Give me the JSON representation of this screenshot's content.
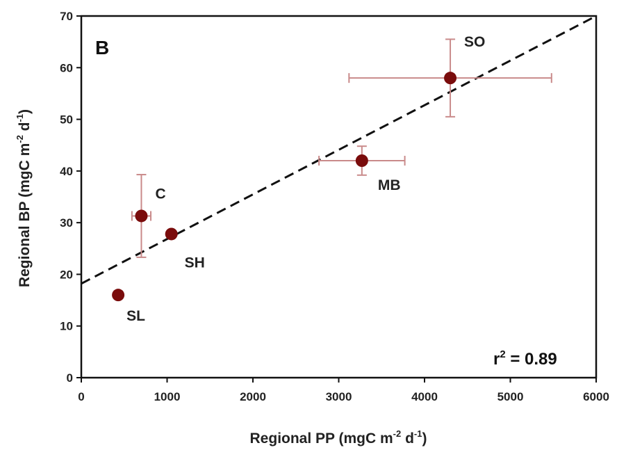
{
  "chart_data": {
    "type": "scatter",
    "panel_label": "B",
    "xlabel": {
      "prefix": "Regional PP (mgC m",
      "sup1": "-2",
      "mid": " d",
      "sup2": "-1",
      "suffix": ")"
    },
    "ylabel": {
      "prefix": "Regional BP (mgC m",
      "sup1": "-2",
      "mid": " d",
      "sup2": "-1",
      "suffix": ")"
    },
    "xlim": [
      0,
      6000
    ],
    "ylim": [
      0,
      70
    ],
    "xticks": [
      0,
      1000,
      2000,
      3000,
      4000,
      5000,
      6000
    ],
    "yticks": [
      0,
      10,
      20,
      30,
      40,
      50,
      60,
      70
    ],
    "grid": false,
    "point_color": "#7a0c0c",
    "errorbar_color": "#c98a8a",
    "fit_line_color": "#111111",
    "points": [
      {
        "label": "SL",
        "x": 430,
        "y": 16.0,
        "xerr": 0,
        "yerr": 0,
        "label_pos": "below-right"
      },
      {
        "label": "C",
        "x": 700,
        "y": 31.3,
        "xerr": 110,
        "yerr": 8.0,
        "label_pos": "above-right"
      },
      {
        "label": "SH",
        "x": 1050,
        "y": 27.8,
        "xerr": 0,
        "yerr": 0,
        "label_pos": "below-right"
      },
      {
        "label": "MB",
        "x": 3270,
        "y": 42.0,
        "xerr": 500,
        "yerr": 2.8,
        "label_pos": "below-right"
      },
      {
        "label": "SO",
        "x": 4300,
        "y": 58.0,
        "xerr": 1180,
        "yerr": 7.5,
        "label_pos": "above-right"
      }
    ],
    "fit_line": {
      "x": [
        0,
        6000
      ],
      "y": [
        18.2,
        70.0
      ],
      "style": "dashed"
    },
    "annotation": {
      "prefix": "r",
      "sup": "2",
      "suffix": " = 0.89"
    }
  }
}
